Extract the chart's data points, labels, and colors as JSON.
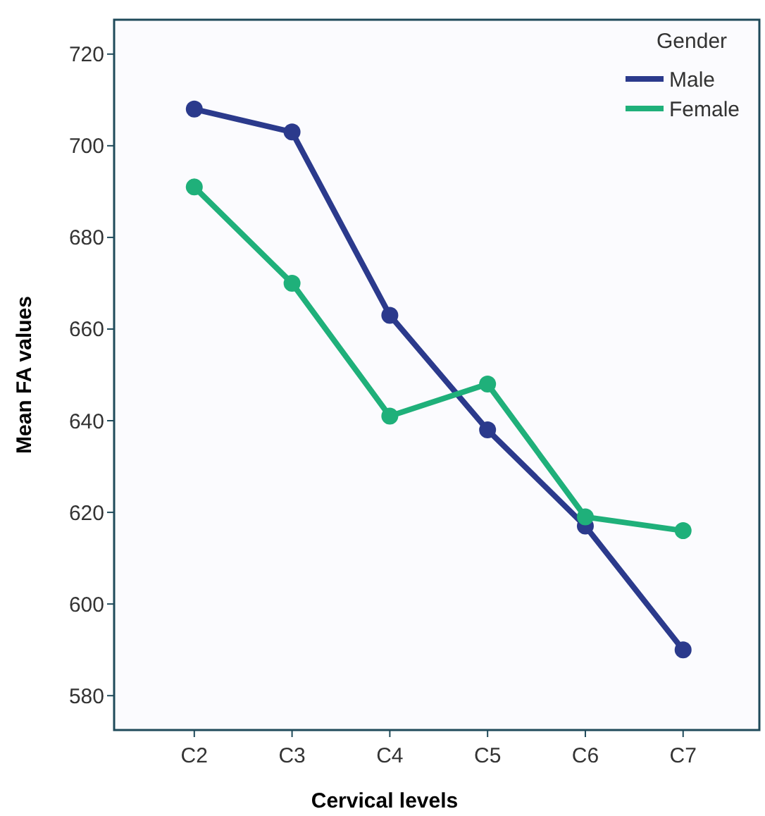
{
  "chart_data": {
    "type": "line",
    "xlabel": "Cervical levels",
    "ylabel": "Mean FA values",
    "legend_title": "Gender",
    "categories": [
      "C2",
      "C3",
      "C4",
      "C5",
      "C6",
      "C7"
    ],
    "series": [
      {
        "name": "Male",
        "color": "#2b3a8c",
        "values": [
          708,
          703,
          663,
          638,
          617,
          590
        ]
      },
      {
        "name": "Female",
        "color": "#1fb07a",
        "values": [
          691,
          670,
          641,
          648,
          619,
          616
        ]
      }
    ],
    "ylim": [
      572.5,
      727.5
    ],
    "yticks": [
      580,
      600,
      620,
      640,
      660,
      680,
      700,
      720
    ],
    "grid": false,
    "legend": "top right",
    "marker": "circle",
    "line_style": "solid"
  }
}
